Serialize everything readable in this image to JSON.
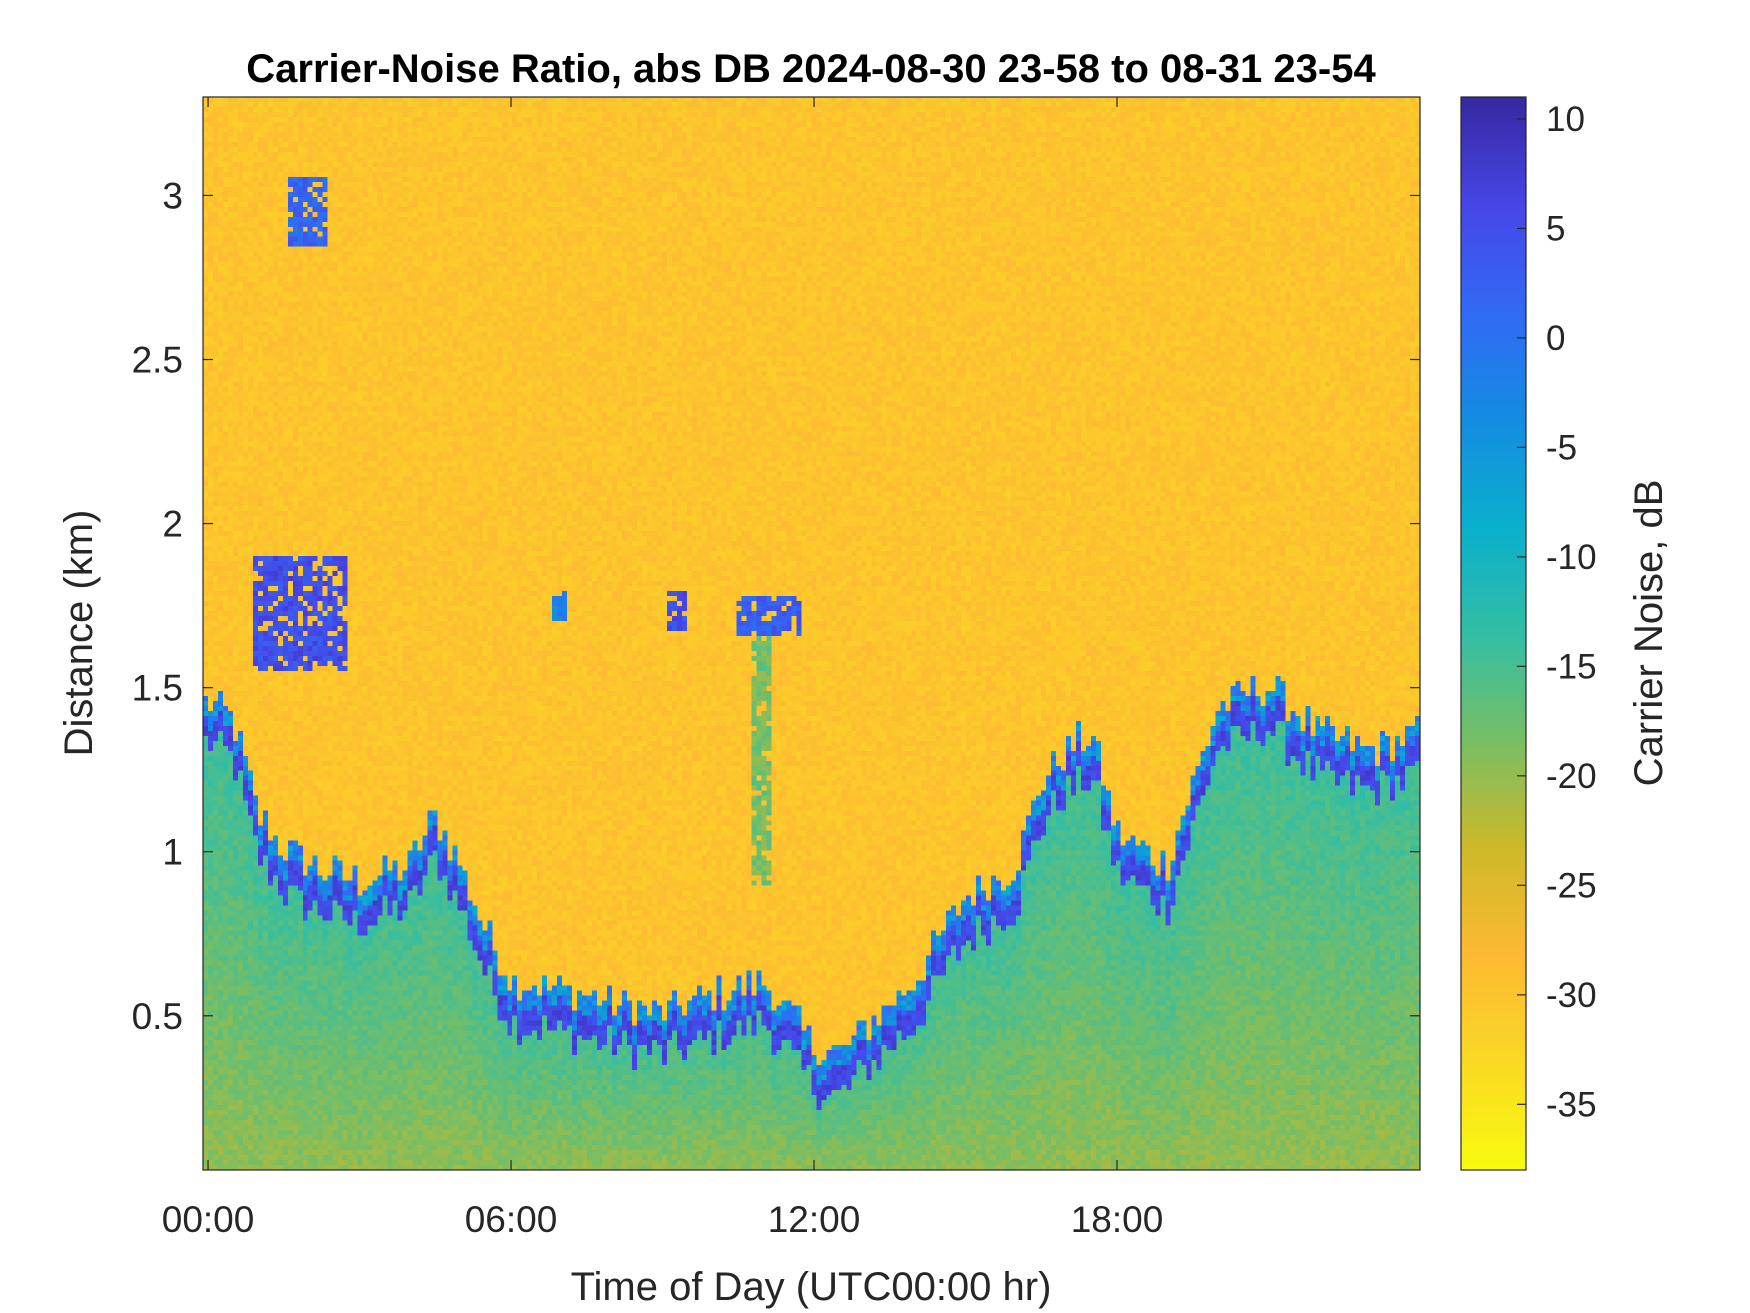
{
  "chart_data": {
    "type": "heatmap",
    "title": "Carrier-Noise Ratio, abs DB 2024-08-30 23-58 to 08-31 23-54",
    "xlabel": "Time of Day (UTC00:00 hr)",
    "ylabel": "Distance (km)",
    "colorbar_label": "Carrier Noise, dB",
    "colormap": "parula (reversed)",
    "xlim_hours": [
      -0.1,
      24.0
    ],
    "ylim_km": [
      0.03,
      3.3
    ],
    "clim_db": [
      -38,
      11
    ],
    "x_ticks": [
      {
        "value": 0,
        "label": "00:00"
      },
      {
        "value": 6,
        "label": "06:00"
      },
      {
        "value": 12,
        "label": "12:00"
      },
      {
        "value": 18,
        "label": "18:00"
      }
    ],
    "y_ticks": [
      {
        "value": 0.5,
        "label": "0.5"
      },
      {
        "value": 1.0,
        "label": "1"
      },
      {
        "value": 1.5,
        "label": "1.5"
      },
      {
        "value": 2.0,
        "label": "2"
      },
      {
        "value": 2.5,
        "label": "2.5"
      },
      {
        "value": 3.0,
        "label": "3"
      }
    ],
    "colorbar_ticks": [
      {
        "value": 10,
        "label": "10"
      },
      {
        "value": 5,
        "label": "5"
      },
      {
        "value": 0,
        "label": "0"
      },
      {
        "value": -5,
        "label": "-5"
      },
      {
        "value": -10,
        "label": "-10"
      },
      {
        "value": -15,
        "label": "-15"
      },
      {
        "value": -20,
        "label": "-20"
      },
      {
        "value": -25,
        "label": "-25"
      },
      {
        "value": -30,
        "label": "-30"
      },
      {
        "value": -35,
        "label": "-35"
      }
    ],
    "background_db": -30,
    "boundary_layer_top_km": {
      "hours": [
        0,
        0.5,
        1,
        1.5,
        2,
        3,
        4,
        4.5,
        5,
        5.5,
        6,
        7,
        8,
        9,
        10,
        11,
        12,
        12.5,
        13,
        14,
        15,
        16,
        16.5,
        17,
        17.5,
        18,
        18.5,
        19,
        20,
        21,
        22,
        23,
        23.9
      ],
      "km": [
        1.4,
        1.35,
        1.05,
        0.95,
        0.9,
        0.85,
        0.9,
        1.05,
        0.9,
        0.7,
        0.55,
        0.52,
        0.48,
        0.45,
        0.5,
        0.55,
        0.35,
        0.32,
        0.4,
        0.55,
        0.8,
        0.9,
        1.15,
        1.25,
        1.3,
        1.0,
        0.95,
        0.9,
        1.38,
        1.45,
        1.3,
        1.25,
        1.3
      ]
    },
    "features": [
      {
        "name": "aerosol layer",
        "x_hours": [
          0.9,
          2.8
        ],
        "y_km": [
          1.55,
          1.9
        ],
        "db": 5
      },
      {
        "name": "elevated patch",
        "x_hours": [
          1.6,
          2.4
        ],
        "y_km": [
          2.85,
          3.05
        ],
        "db": 2
      },
      {
        "name": "cloud patch",
        "x_hours": [
          9.1,
          9.5
        ],
        "y_km": [
          1.68,
          1.8
        ],
        "db": 5
      },
      {
        "name": "cloud patch",
        "x_hours": [
          10.5,
          11.8
        ],
        "y_km": [
          1.65,
          1.78
        ],
        "db": 3
      },
      {
        "name": "cloud patch",
        "x_hours": [
          6.8,
          7.1
        ],
        "y_km": [
          1.7,
          1.8
        ],
        "db": -2
      },
      {
        "name": "descending plume",
        "x_hours": [
          10.8,
          11.2
        ],
        "y_km": [
          0.9,
          1.65
        ],
        "db": -18
      }
    ]
  }
}
